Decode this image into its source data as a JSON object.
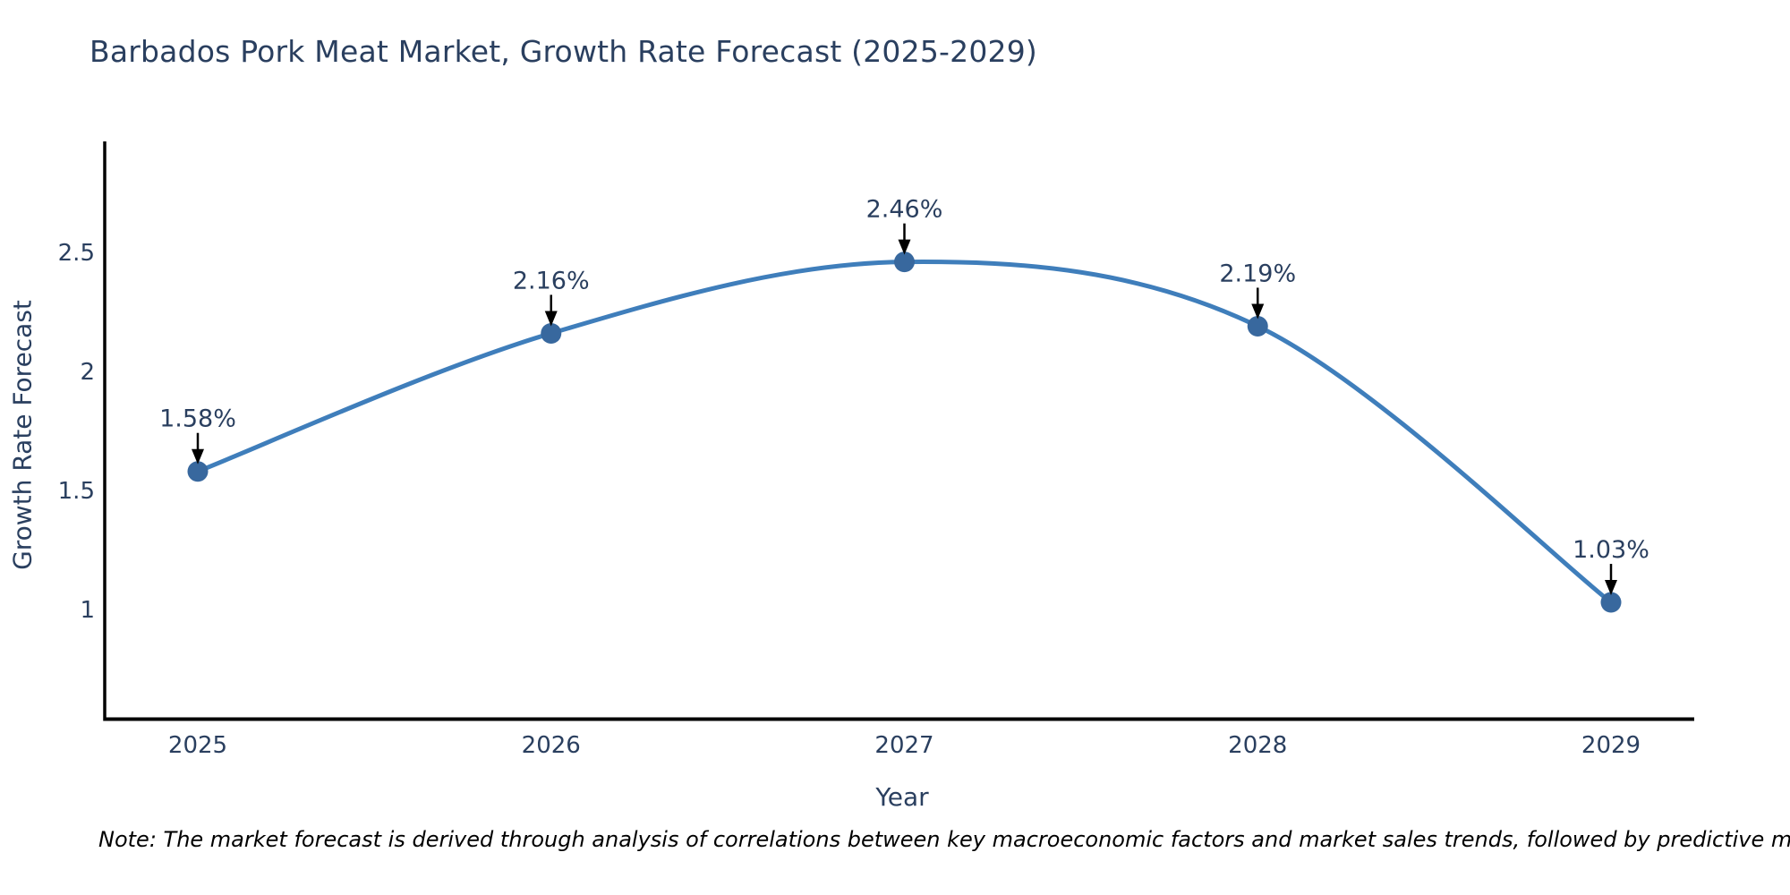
{
  "title": "Barbados Pork Meat Market, Growth Rate Forecast (2025-2029)",
  "note": "Note: The market forecast is derived through analysis of correlations between key macroeconomic factors and market sales trends, followed by predictive modeling to project future sales",
  "chart_data": {
    "type": "line",
    "title": "Barbados Pork Meat Market, Growth Rate Forecast (2025-2029)",
    "xlabel": "Year",
    "ylabel": "Growth Rate Forecast",
    "categories": [
      "2025",
      "2026",
      "2027",
      "2028",
      "2029"
    ],
    "values": [
      1.58,
      2.16,
      2.46,
      2.19,
      1.03
    ],
    "point_labels": [
      "1.58%",
      "2.16%",
      "2.46%",
      "2.19%",
      "1.03%"
    ],
    "ytick_values": [
      2.5,
      2,
      1.5,
      1
    ],
    "ytick_labels": [
      "2.5",
      "2",
      "1.5",
      "1"
    ],
    "ylim": [
      0.54,
      2.97
    ],
    "line_shape": "spline",
    "grid": false,
    "legend": false,
    "annotation_style": "label-above-with-down-arrow",
    "colors": {
      "line": "#3f7ebb",
      "marker": "#38689e",
      "axis": "#000000",
      "arrow": "#000000",
      "text": "#2a3f5f"
    }
  }
}
